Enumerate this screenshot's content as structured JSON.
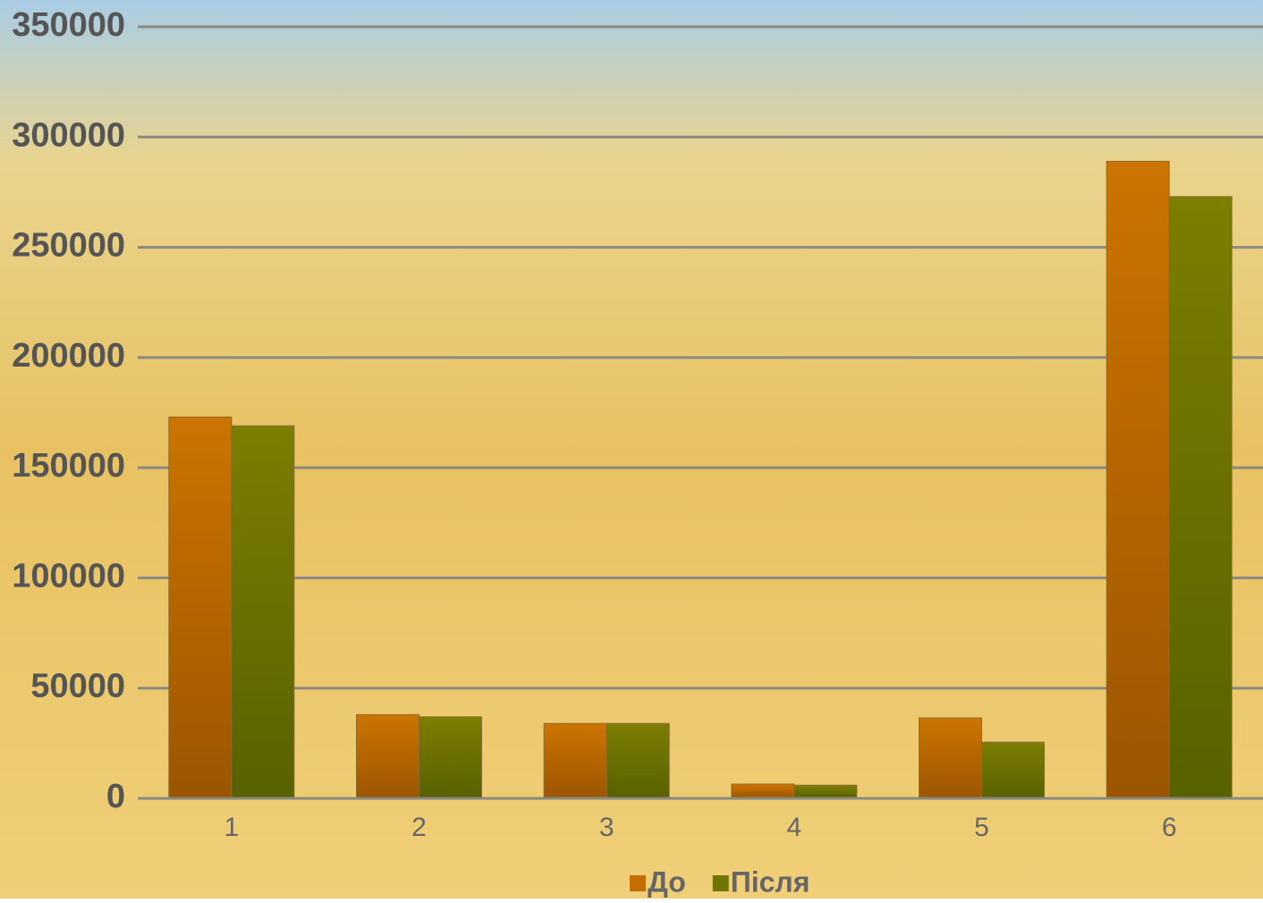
{
  "chart_data": {
    "type": "bar",
    "categories": [
      "1",
      "2",
      "3",
      "4",
      "5",
      "6"
    ],
    "series": [
      {
        "name": "До",
        "color": "#c46d00",
        "values": [
          173000,
          38000,
          34000,
          6500,
          36500,
          289000
        ]
      },
      {
        "name": "Після",
        "color": "#6f7600",
        "values": [
          169000,
          37000,
          34000,
          6000,
          25500,
          273000
        ]
      }
    ],
    "ylim": [
      0,
      350000
    ],
    "yticks": [
      0,
      50000,
      100000,
      150000,
      200000,
      250000,
      300000,
      350000
    ],
    "grid": true,
    "legend": "bottom"
  }
}
